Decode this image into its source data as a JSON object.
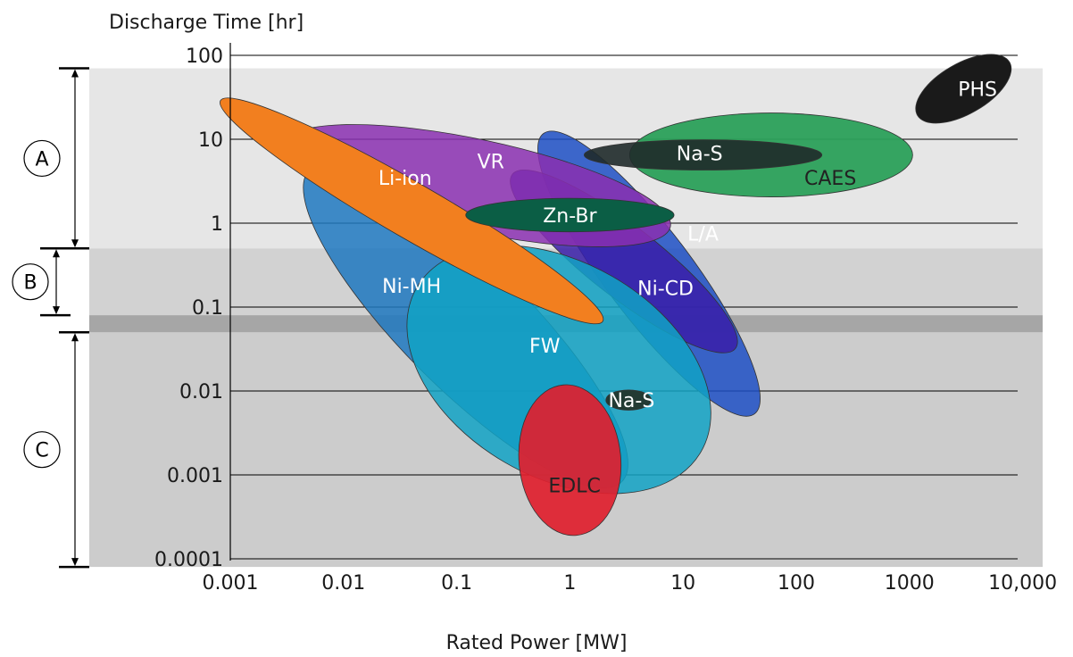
{
  "chart_data": {
    "type": "scatter",
    "title": "",
    "xlabel": "Rated Power [MW]",
    "ylabel": "Discharge Time [hr]",
    "xscale": "log",
    "yscale": "log",
    "xlim": [
      0.001,
      10000
    ],
    "ylim": [
      0.0001,
      100
    ],
    "x_tick_labels": [
      "0.001",
      "0.01",
      "0.1",
      "1",
      "10",
      "100",
      "1000",
      "10,000"
    ],
    "y_tick_labels": [
      "0.0001",
      "0.001",
      "0.01",
      "0.1",
      "1",
      "10",
      "100"
    ],
    "grid": "horizontal",
    "bands": [
      {
        "label": "A",
        "y_range": [
          0.5,
          70
        ],
        "color": "#e6e6e6"
      },
      {
        "label": "B",
        "y_range": [
          0.08,
          0.5
        ],
        "color": "#d2d2d2"
      },
      {
        "label": "C",
        "y_range": [
          8e-05,
          0.05
        ],
        "color": "#cccccc"
      }
    ],
    "regions": [
      {
        "label": "Ni-MH",
        "color": "#1f78bf",
        "x_range": [
          0.007,
          2
        ],
        "y_range": [
          0.0008,
          8
        ]
      },
      {
        "label": "L/A",
        "color": "#1d4fc4",
        "x_range": [
          0.3,
          150
        ],
        "y_range": [
          0.005,
          8
        ]
      },
      {
        "label": "Ni-CD",
        "color": "#3a1fa8",
        "x_range": [
          0.2,
          100
        ],
        "y_range": [
          0.02,
          3
        ]
      },
      {
        "label": "FW",
        "color": "#11a2c4",
        "x_range": [
          0.05,
          15
        ],
        "y_range": [
          0.001,
          0.4
        ]
      },
      {
        "label": "EDLC",
        "color": "#e0202e",
        "x_range": [
          0.35,
          2.5
        ],
        "y_range": [
          0.00015,
          0.01
        ]
      },
      {
        "label": "Na-S",
        "color": "#233a33",
        "x_range": [
          2,
          5
        ],
        "y_range": [
          0.006,
          0.01
        ]
      },
      {
        "label": "VR",
        "color": "#8a2fb0",
        "x_range": [
          0.003,
          8
        ],
        "y_range": [
          0.5,
          10
        ]
      },
      {
        "label": "Li-ion",
        "color": "#f27f1f",
        "x_range": [
          0.0012,
          1.3
        ],
        "y_range": [
          0.1,
          20
        ]
      },
      {
        "label": "Zn-Br",
        "color": "#0b5e45",
        "x_range": [
          0.12,
          8
        ],
        "y_range": [
          0.8,
          2
        ]
      },
      {
        "label": "CAES",
        "color": "#2ba05a",
        "x_range": [
          3,
          1000
        ],
        "y_range": [
          1.5,
          20
        ]
      },
      {
        "label": "Na-S",
        "color": "#1f2a2a",
        "x_range": [
          1,
          200
        ],
        "y_range": [
          4,
          10
        ]
      },
      {
        "label": "PHS",
        "color": "#1a1a1a",
        "x_range": [
          1000,
          8000
        ],
        "y_range": [
          15,
          100
        ]
      }
    ]
  }
}
